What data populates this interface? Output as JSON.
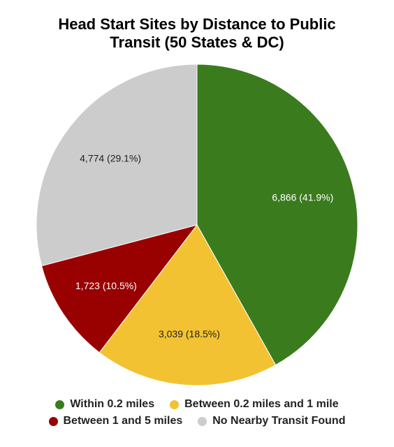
{
  "chart_data": {
    "type": "pie",
    "title_line1": "Head Start Sites by Distance to Public",
    "title_line2": "Transit (50 States & DC)",
    "slices": [
      {
        "label": "Within 0.2 miles",
        "value": 6866,
        "percent": 41.9,
        "data_label": "6,866 (41.9%)",
        "color": "#3a7b1e",
        "label_color": "#ffffff"
      },
      {
        "label": "Between 0.2 miles and 1 mile",
        "value": 3039,
        "percent": 18.5,
        "data_label": "3,039 (18.5%)",
        "color": "#f2c232",
        "label_color": "#222222"
      },
      {
        "label": "Between 1 and 5 miles",
        "value": 1723,
        "percent": 10.5,
        "data_label": "1,723 (10.5%)",
        "color": "#990000",
        "label_color": "#ffffff"
      },
      {
        "label": "No Nearby Transit Found",
        "value": 4774,
        "percent": 29.1,
        "data_label": "4,774 (29.1%)",
        "color": "#cccccc",
        "label_color": "#222222"
      }
    ],
    "legend_placement": "bottom"
  }
}
